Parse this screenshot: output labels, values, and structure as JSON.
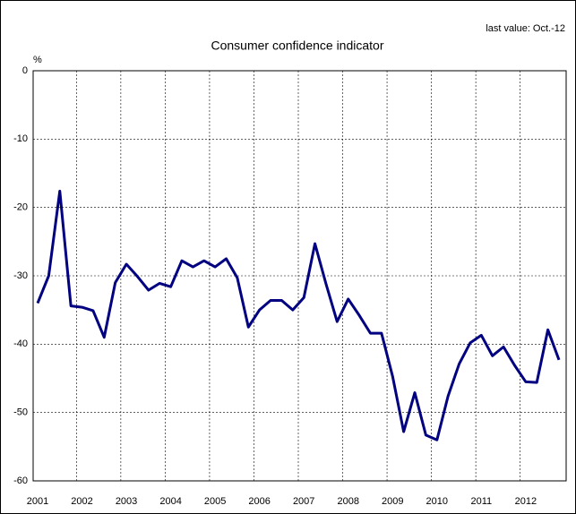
{
  "chart_data": {
    "type": "line",
    "title": "Consumer confidence indicator",
    "annotation": "last value: Oct.-12",
    "y_label": "%",
    "categories": [
      "2001",
      null,
      null,
      null,
      "2002",
      null,
      null,
      null,
      "2003",
      null,
      null,
      null,
      "2004",
      null,
      null,
      null,
      "2005",
      null,
      null,
      null,
      "2006",
      null,
      null,
      null,
      "2007",
      null,
      null,
      null,
      "2008",
      null,
      null,
      null,
      "2009",
      null,
      null,
      null,
      "2010",
      null,
      null,
      null,
      "2011",
      null,
      null,
      null,
      "2012",
      null,
      null,
      null
    ],
    "series": [
      {
        "name": "Consumer confidence indicator",
        "color": "#000080",
        "values": [
          -34,
          -30,
          -17.6,
          -34.4,
          -34.6,
          -35.1,
          -39,
          -31,
          -28.3,
          -30.1,
          -32.1,
          -31.1,
          -31.6,
          -27.8,
          -28.7,
          -27.8,
          -28.7,
          -27.5,
          -30.3,
          -37.5,
          -35,
          -33.6,
          -33.6,
          -35,
          -33.2,
          -25.3,
          -31.2,
          -36.7,
          -33.4,
          -35.8,
          -38.4,
          -38.4,
          -44.7,
          -52.8,
          -47.1,
          -53.3,
          -54,
          -47.6,
          -42.9,
          -39.8,
          -38.7,
          -41.7,
          -40.4,
          -43.1,
          -45.5,
          -45.6,
          -37.9,
          -42.3
        ]
      }
    ],
    "ylim": [
      -60,
      0
    ],
    "yticks": [
      0,
      -10,
      -20,
      -30,
      -40,
      -50,
      -60
    ],
    "grid": true
  }
}
